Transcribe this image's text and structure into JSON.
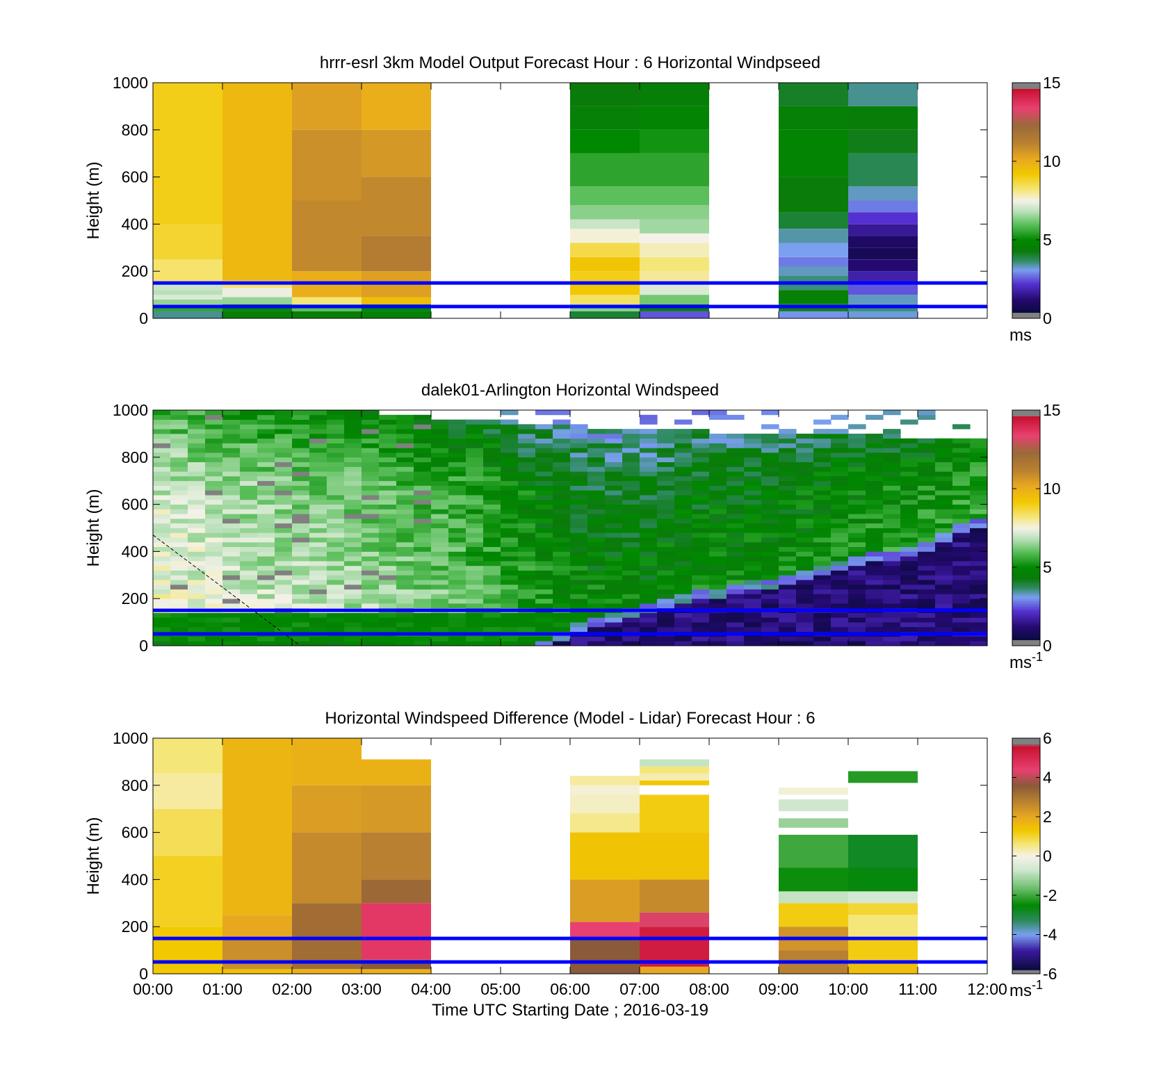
{
  "colors": {
    "frame": "#000000",
    "reference_line": "#0000ff"
  },
  "chart_data": [
    {
      "type": "heatmap",
      "title": "hrrr-esrl 3km Model Output   Forecast Hour : 6 Horizontal Windpseed",
      "ylabel": "Height (m)",
      "ylim": [
        0,
        1000
      ],
      "yticks": [
        "0",
        "200",
        "400",
        "600",
        "800",
        "1000"
      ],
      "xlim": [
        "00:00",
        "12:00"
      ],
      "colorbar": {
        "min": 0,
        "max": 15,
        "ticks": [
          "0",
          "5",
          "10",
          "15"
        ],
        "unit": "ms",
        "unit_sup": ""
      },
      "reference_lines_m": [
        150,
        50
      ],
      "colormap": "windspeed",
      "columns": [
        {
          "start": 0,
          "end": 1,
          "profile": [
            [
              0,
              30,
              3.5
            ],
            [
              30,
              50,
              5.5
            ],
            [
              50,
              80,
              6.5
            ],
            [
              80,
              100,
              7.2
            ],
            [
              100,
              120,
              6.8
            ],
            [
              120,
              150,
              7.0
            ],
            [
              150,
              250,
              8.3
            ],
            [
              250,
              400,
              8.8
            ],
            [
              400,
              1000,
              9.0
            ]
          ]
        },
        {
          "start": 1,
          "end": 2,
          "profile": [
            [
              0,
              30,
              4.5
            ],
            [
              30,
              60,
              5.0
            ],
            [
              60,
              90,
              6.5
            ],
            [
              90,
              130,
              7.4
            ],
            [
              130,
              160,
              8.3
            ],
            [
              160,
              1000,
              9.7
            ]
          ]
        },
        {
          "start": 2,
          "end": 3,
          "profile": [
            [
              0,
              30,
              4.5
            ],
            [
              30,
              60,
              6.0
            ],
            [
              60,
              90,
              8.2
            ],
            [
              90,
              200,
              10.0
            ],
            [
              200,
              500,
              11.0
            ],
            [
              500,
              800,
              10.8
            ],
            [
              800,
              1000,
              10.4
            ]
          ]
        },
        {
          "start": 3,
          "end": 4,
          "profile": [
            [
              0,
              30,
              4.6
            ],
            [
              30,
              60,
              5.0
            ],
            [
              60,
              90,
              9.5
            ],
            [
              90,
              200,
              10.4
            ],
            [
              200,
              350,
              11.4
            ],
            [
              350,
              600,
              11.0
            ],
            [
              600,
              800,
              10.6
            ],
            [
              800,
              1000,
              10.0
            ]
          ]
        },
        {
          "start": 6,
          "end": 7,
          "profile": [
            [
              0,
              30,
              4.0
            ],
            [
              30,
              60,
              6.4
            ],
            [
              60,
              100,
              8.4
            ],
            [
              100,
              150,
              9.2
            ],
            [
              150,
              200,
              9.0
            ],
            [
              200,
              260,
              9.3
            ],
            [
              260,
              320,
              8.6
            ],
            [
              320,
              380,
              7.6
            ],
            [
              380,
              420,
              7.0
            ],
            [
              420,
              480,
              6.4
            ],
            [
              480,
              560,
              6.0
            ],
            [
              560,
              700,
              5.5
            ],
            [
              700,
              800,
              5.0
            ],
            [
              800,
              900,
              4.6
            ],
            [
              900,
              1000,
              4.3
            ]
          ]
        },
        {
          "start": 7,
          "end": 8,
          "profile": [
            [
              0,
              30,
              2.5
            ],
            [
              30,
              60,
              4.4
            ],
            [
              60,
              100,
              6.2
            ],
            [
              100,
              150,
              7.2
            ],
            [
              150,
              200,
              8.0
            ],
            [
              200,
              260,
              8.2
            ],
            [
              260,
              320,
              7.8
            ],
            [
              320,
              360,
              7.5
            ],
            [
              360,
              420,
              6.6
            ],
            [
              420,
              480,
              6.4
            ],
            [
              480,
              560,
              6.0
            ],
            [
              560,
              700,
              5.5
            ],
            [
              700,
              800,
              5.2
            ],
            [
              800,
              900,
              4.8
            ],
            [
              900,
              1000,
              4.5
            ]
          ]
        },
        {
          "start": 9,
          "end": 10,
          "profile": [
            [
              0,
              30,
              3.0
            ],
            [
              30,
              60,
              4.2
            ],
            [
              60,
              120,
              4.6
            ],
            [
              120,
              180,
              3.6
            ],
            [
              180,
              220,
              3.3
            ],
            [
              220,
              260,
              2.8
            ],
            [
              260,
              320,
              3.1
            ],
            [
              320,
              380,
              3.4
            ],
            [
              380,
              450,
              4.0
            ],
            [
              450,
              600,
              4.4
            ],
            [
              600,
              800,
              4.8
            ],
            [
              800,
              900,
              4.6
            ],
            [
              900,
              1000,
              4.1
            ]
          ]
        },
        {
          "start": 10,
          "end": 11,
          "profile": [
            [
              0,
              30,
              3.2
            ],
            [
              30,
              60,
              3.6
            ],
            [
              60,
              100,
              3.3
            ],
            [
              100,
              150,
              2.5
            ],
            [
              150,
              200,
              1.8
            ],
            [
              200,
              250,
              1.2
            ],
            [
              250,
              300,
              0.8
            ],
            [
              300,
              350,
              1.0
            ],
            [
              350,
              400,
              1.6
            ],
            [
              400,
              450,
              2.2
            ],
            [
              450,
              500,
              2.8
            ],
            [
              500,
              560,
              3.3
            ],
            [
              560,
              700,
              3.8
            ],
            [
              700,
              800,
              4.2
            ],
            [
              800,
              900,
              4.5
            ],
            [
              900,
              1000,
              3.5
            ]
          ]
        }
      ]
    },
    {
      "type": "heatmap",
      "title": "dalek01-Arlington  Horizontal Windspeed",
      "ylabel": "Height (m)",
      "ylim": [
        0,
        1000
      ],
      "yticks": [
        "0",
        "200",
        "400",
        "600",
        "800",
        "1000"
      ],
      "xlim": [
        "00:00",
        "12:00"
      ],
      "colorbar": {
        "min": 0,
        "max": 15,
        "ticks": [
          "0",
          "5",
          "10",
          "15"
        ],
        "unit": "ms",
        "unit_sup": "-1"
      },
      "reference_lines_m": [
        150,
        50
      ],
      "colormap": "windspeed",
      "lidar_field": {
        "time_bins_per_hour": 4,
        "low_jet_speed": 5.0,
        "low_jet_top_m": 150,
        "stable_layer_top_by_hour": [
          [
            0,
            0
          ],
          [
            5.5,
            0
          ],
          [
            6,
            90
          ],
          [
            7,
            170
          ],
          [
            8,
            240
          ],
          [
            9,
            290
          ],
          [
            10,
            370
          ],
          [
            11,
            430
          ],
          [
            12,
            560
          ]
        ],
        "stable_speed": 1.2,
        "upper_speed_by_hour": [
          [
            0,
            7.8
          ],
          [
            1,
            7.3
          ],
          [
            2,
            7.0
          ],
          [
            3,
            6.8
          ],
          [
            4,
            6.3
          ],
          [
            5,
            5.8
          ],
          [
            6,
            5.0
          ],
          [
            7,
            4.8
          ],
          [
            8,
            5.0
          ],
          [
            9,
            5.0
          ],
          [
            10,
            5.2
          ],
          [
            11,
            5.4
          ],
          [
            12,
            5.6
          ]
        ],
        "data_top_by_hour": [
          [
            0,
            1000
          ],
          [
            3,
            990
          ],
          [
            5,
            950
          ],
          [
            7,
            920
          ],
          [
            9,
            900
          ],
          [
            12,
            880
          ]
        ]
      },
      "diagonal_line": {
        "from": [
          "00:00",
          470
        ],
        "to": [
          "02:07",
          0
        ]
      }
    },
    {
      "type": "heatmap",
      "title": "Horizontal Windspeed Difference (Model - Lidar) Forecast Hour : 6",
      "ylabel": "Height (m)",
      "xlabel": "Time UTC  Starting Date ; 2016-03-19",
      "ylim": [
        0,
        1000
      ],
      "yticks": [
        "0",
        "200",
        "400",
        "600",
        "800",
        "1000"
      ],
      "xlim": [
        "00:00",
        "12:00"
      ],
      "xticks": [
        "00:00",
        "01:00",
        "02:00",
        "03:00",
        "04:00",
        "05:00",
        "06:00",
        "07:00",
        "08:00",
        "09:00",
        "10:00",
        "11:00",
        "12:00"
      ],
      "colorbar": {
        "min": -6,
        "max": 6,
        "ticks": [
          "-6",
          "-4",
          "-2",
          "0",
          "2",
          "4",
          "6"
        ],
        "unit": "ms",
        "unit_sup": "-1"
      },
      "reference_lines_m": [
        150,
        50
      ],
      "colormap": "difference",
      "columns": [
        {
          "start": 0,
          "end": 1,
          "profile": [
            [
              0,
              200,
              1.3
            ],
            [
              200,
              500,
              1.1
            ],
            [
              500,
              700,
              0.8
            ],
            [
              700,
              850,
              0.4
            ],
            [
              850,
              1000,
              0.6
            ]
          ]
        },
        {
          "start": 1,
          "end": 2,
          "profile": [
            [
              0,
              20,
              1.5
            ],
            [
              20,
              150,
              2.5
            ],
            [
              150,
              250,
              2.0
            ],
            [
              250,
              1000,
              1.7
            ]
          ]
        },
        {
          "start": 2,
          "end": 3,
          "profile": [
            [
              0,
              20,
              1.8
            ],
            [
              20,
              300,
              3.2
            ],
            [
              300,
              600,
              2.6
            ],
            [
              600,
              800,
              2.2
            ],
            [
              800,
              1000,
              1.8
            ]
          ]
        },
        {
          "start": 3,
          "end": 4,
          "profile": [
            [
              0,
              20,
              1.8
            ],
            [
              20,
              60,
              3.6
            ],
            [
              60,
              300,
              4.6
            ],
            [
              300,
              400,
              3.3
            ],
            [
              400,
              600,
              2.8
            ],
            [
              600,
              800,
              2.3
            ],
            [
              800,
              910,
              1.8
            ]
          ]
        },
        {
          "start": 6,
          "end": 7,
          "profile": [
            [
              0,
              150,
              3.6
            ],
            [
              150,
              220,
              4.4
            ],
            [
              220,
              400,
              2.2
            ],
            [
              400,
              600,
              1.4
            ],
            [
              600,
              680,
              0.5
            ],
            [
              680,
              760,
              0.2
            ],
            [
              760,
              800,
              0.1
            ],
            [
              800,
              840,
              0.4
            ]
          ]
        },
        {
          "start": 7,
          "end": 8,
          "profile": [
            [
              0,
              30,
              2.0
            ],
            [
              30,
              200,
              5.3
            ],
            [
              200,
              260,
              4.3
            ],
            [
              260,
              400,
              2.6
            ],
            [
              400,
              600,
              1.4
            ],
            [
              600,
              760,
              1.2
            ],
            [
              800,
              820,
              1.3
            ],
            [
              820,
              850,
              0.3
            ],
            [
              850,
              880,
              0.6
            ],
            [
              880,
              910,
              -0.8
            ]
          ]
        },
        {
          "start": 9,
          "end": 10,
          "profile": [
            [
              0,
              100,
              2.8
            ],
            [
              100,
              200,
              2.4
            ],
            [
              200,
              300,
              1.2
            ],
            [
              300,
              350,
              -0.8
            ],
            [
              350,
              450,
              -2.4
            ],
            [
              450,
              590,
              -2.0
            ],
            [
              620,
              660,
              -1.2
            ],
            [
              690,
              740,
              -0.7
            ],
            [
              760,
              790,
              0.1
            ]
          ]
        },
        {
          "start": 10,
          "end": 11,
          "profile": [
            [
              0,
              60,
              1.5
            ],
            [
              60,
              150,
              1.2
            ],
            [
              150,
              250,
              0.6
            ],
            [
              250,
              300,
              1.0
            ],
            [
              300,
              350,
              -0.6
            ],
            [
              350,
              450,
              -2.6
            ],
            [
              450,
              590,
              -2.8
            ],
            [
              810,
              860,
              -2.2
            ]
          ]
        }
      ]
    }
  ]
}
